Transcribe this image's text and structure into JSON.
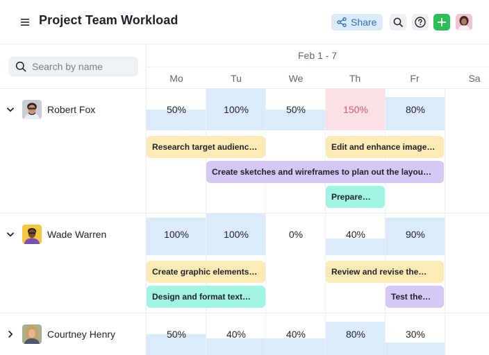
{
  "header": {
    "title": "Project Team Workload",
    "share_label": "Share"
  },
  "search": {
    "placeholder": "Search by name"
  },
  "calendar": {
    "week": "Feb 1 - 7",
    "days": [
      "Mo",
      "Tu",
      "We",
      "Th",
      "Fr",
      "Sa"
    ]
  },
  "people": [
    {
      "name": "Robert Fox",
      "expanded": true,
      "loads": [
        "50%",
        "100%",
        "50%",
        "150%",
        "80%"
      ],
      "load_fractions": [
        0.5,
        1.0,
        0.5,
        1.5,
        0.8
      ],
      "tasks": [
        {
          "label": "Research target audienc…",
          "color": "yellow"
        },
        {
          "label": "Edit and enhance image…",
          "color": "yellow"
        },
        {
          "label": "Create sketches and wireframes to plan out the layou…",
          "color": "purple"
        },
        {
          "label": "Prepare…",
          "color": "teal"
        }
      ]
    },
    {
      "name": "Wade Warren",
      "expanded": true,
      "loads": [
        "100%",
        "100%",
        "0%",
        "40%",
        "90%"
      ],
      "load_fractions": [
        1.0,
        1.0,
        0.0,
        0.4,
        0.9
      ],
      "tasks": [
        {
          "label": "Create graphic elements…",
          "color": "yellow"
        },
        {
          "label": "Review and revise the…",
          "color": "yellow"
        },
        {
          "label": "Design and format text…",
          "color": "teal"
        },
        {
          "label": "Test the…",
          "color": "purple"
        }
      ]
    },
    {
      "name": "Courtney Henry",
      "expanded": false,
      "loads": [
        "50%",
        "40%",
        "40%",
        "80%",
        "30%"
      ],
      "load_fractions": [
        0.5,
        0.4,
        0.4,
        0.8,
        0.3
      ]
    }
  ],
  "colors": {
    "accent": "#2a72c9",
    "add": "#2fbf5a",
    "load": "#dcebfb",
    "overload": "#fbe1e5",
    "overload_text": "#e45463",
    "task_yellow": "#fdebb6",
    "task_purple": "#d5c7f6",
    "task_teal": "#a1f3e4"
  },
  "icons": {
    "menu": "menu-icon",
    "share": "share-icon",
    "search": "search-icon",
    "help": "help-icon",
    "add": "plus-icon"
  }
}
